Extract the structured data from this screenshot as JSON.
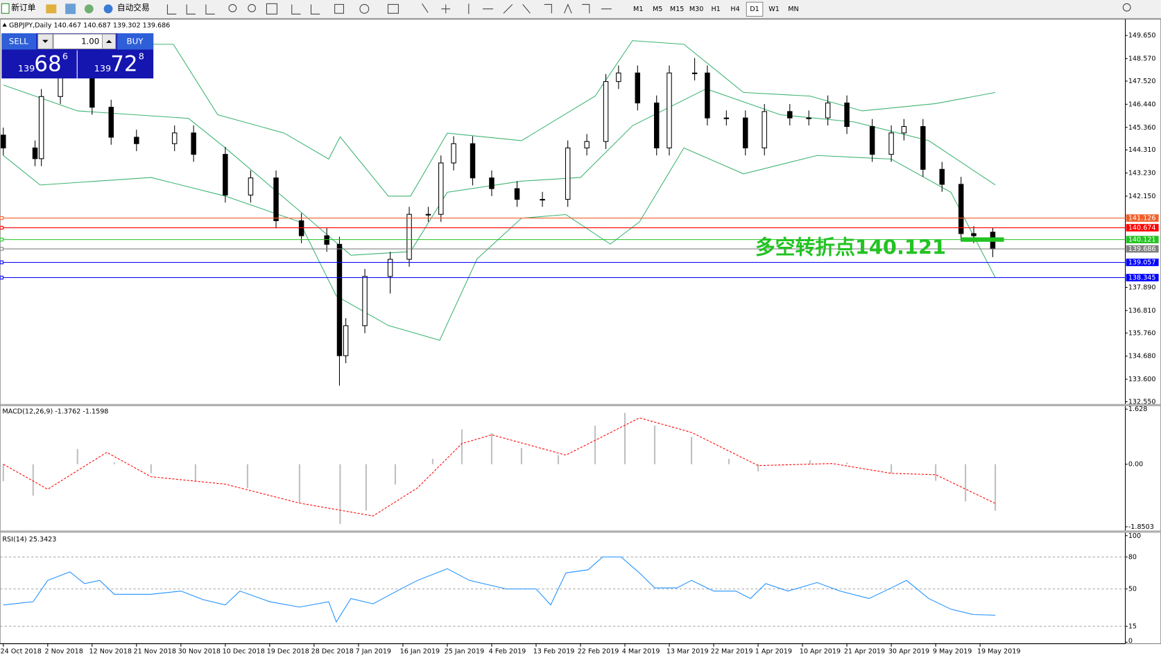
{
  "toolbar": {
    "new_order": "新订单",
    "auto_trading": "自动交易",
    "timeframes": [
      "M1",
      "M5",
      "M15",
      "M30",
      "H1",
      "H4",
      "D1",
      "W1",
      "MN"
    ],
    "active": "D1"
  },
  "trade_panel": {
    "sell": "SELL",
    "buy": "BUY",
    "lots": "1.00",
    "bid": {
      "prefix": "139",
      "big": "68",
      "point": "6"
    },
    "ask": {
      "prefix": "139",
      "big": "72",
      "point": "8"
    }
  },
  "chart_data": [
    {
      "type": "candlestick",
      "title": "GBPJPY,Daily  140.467 140.687 139.302 139.686",
      "x": [
        0,
        5,
        6,
        9,
        14,
        17,
        21,
        27,
        30,
        35,
        39,
        43,
        47,
        51,
        53,
        54,
        57,
        61,
        64,
        67,
        69,
        71,
        74,
        77,
        81,
        85,
        89,
        92,
        95,
        97,
        100,
        103,
        105,
        109,
        111,
        114,
        117,
        120,
        124,
        127,
        130,
        133,
        137,
        140,
        142,
        145,
        148,
        151,
        153,
        156
      ],
      "open": [
        145.0,
        144.4,
        143.9,
        146.8,
        147.9,
        146.3,
        144.9,
        144.6,
        145.1,
        144.1,
        142.2,
        143.0,
        141.0,
        140.3,
        139.9,
        134.7,
        136.1,
        138.4,
        139.2,
        141.3,
        141.3,
        143.7,
        144.6,
        143.0,
        142.5,
        142.0,
        142.0,
        144.4,
        144.7,
        147.5,
        147.9,
        146.5,
        144.4,
        147.9,
        147.9,
        145.8,
        145.8,
        144.4,
        146.1,
        145.8,
        145.8,
        146.5,
        145.4,
        144.1,
        145.1,
        145.4,
        143.4,
        142.7,
        140.4,
        140.467
      ],
      "high": [
        145.35,
        144.75,
        147.15,
        148.25,
        148.25,
        146.65,
        145.25,
        145.45,
        145.45,
        144.45,
        143.35,
        143.35,
        141.35,
        140.65,
        140.25,
        136.45,
        138.75,
        139.55,
        141.65,
        141.65,
        144.05,
        144.95,
        144.95,
        143.35,
        142.85,
        142.35,
        144.75,
        145.05,
        147.85,
        148.25,
        148.25,
        146.85,
        148.25,
        148.6,
        148.25,
        146.15,
        146.15,
        146.45,
        146.45,
        146.15,
        146.85,
        146.85,
        145.75,
        145.45,
        145.75,
        145.75,
        143.75,
        143.05,
        140.75,
        140.687
      ],
      "low": [
        144.05,
        143.55,
        143.55,
        146.45,
        145.95,
        144.55,
        144.25,
        144.25,
        143.75,
        141.85,
        141.85,
        140.65,
        139.95,
        139.55,
        133.3,
        134.35,
        135.75,
        137.6,
        138.85,
        140.95,
        140.95,
        143.35,
        142.65,
        142.15,
        141.65,
        141.65,
        141.65,
        144.05,
        144.35,
        147.15,
        146.15,
        144.05,
        144.05,
        147.55,
        145.45,
        145.45,
        144.05,
        144.05,
        145.45,
        145.45,
        145.45,
        145.05,
        143.75,
        143.75,
        144.75,
        143.05,
        142.35,
        140.05,
        139.95,
        139.302
      ],
      "close": [
        144.4,
        143.9,
        146.8,
        147.9,
        146.3,
        144.9,
        144.6,
        145.1,
        144.1,
        142.2,
        143.0,
        141.0,
        140.3,
        139.9,
        134.7,
        136.1,
        138.4,
        139.2,
        141.3,
        141.3,
        143.7,
        144.6,
        143.0,
        142.5,
        142.0,
        142.0,
        144.4,
        144.7,
        147.5,
        147.9,
        146.5,
        144.4,
        147.9,
        147.9,
        145.8,
        145.8,
        144.4,
        146.1,
        145.8,
        145.8,
        146.5,
        145.4,
        144.1,
        145.1,
        145.4,
        143.4,
        142.7,
        140.4,
        140.3,
        139.686
      ],
      "up_color": "#ffffff",
      "down_color": "#000000",
      "bands": [
        {
          "color": "#3cb371",
          "x": [
            0,
            26.8,
            33.8,
            44.3,
            51.3,
            53.1,
            60.7,
            64.2,
            70,
            81.7,
            93.3,
            99.2,
            107.3,
            116.7,
            127.2,
            135.4,
            147,
            156.4
          ],
          "values": [
            149.24,
            149.24,
            145.95,
            145.09,
            143.88,
            144.92,
            142.15,
            142.15,
            145.09,
            144.74,
            146.82,
            149.41,
            149.24,
            146.99,
            146.82,
            146.13,
            146.47,
            146.99
          ]
        },
        {
          "color": "#3cb371",
          "x": [
            0,
            11.7,
            29.2,
            35,
            46.7,
            54.8,
            64.2,
            70,
            81.7,
            91,
            99.2,
            110.8,
            122.5,
            134.2,
            145.9,
            156.4
          ],
          "values": [
            147.34,
            146.13,
            145.78,
            144.4,
            141.46,
            139.39,
            139.56,
            142.33,
            142.85,
            143.02,
            145.44,
            147.16,
            145.95,
            145.61,
            144.74,
            142.67
          ]
        },
        {
          "color": "#3cb371",
          "x": [
            0,
            5.8,
            23.3,
            35,
            46.7,
            52.5,
            60.7,
            68.8,
            74.7,
            81.7,
            88.7,
            95.7,
            100.3,
            107.3,
            116.7,
            128.3,
            140,
            149.4,
            156.4
          ],
          "values": [
            144.05,
            142.67,
            143.02,
            142.15,
            140.95,
            137.49,
            136.11,
            135.42,
            139.22,
            141.12,
            141.29,
            139.91,
            140.95,
            144.4,
            143.19,
            144.05,
            143.88,
            142.33,
            138.35
          ]
        }
      ],
      "hlines": [
        {
          "value": 141.126,
          "label": "141.126",
          "color": "#f0602a"
        },
        {
          "value": 140.674,
          "label": "140.674",
          "color": "#ff0000"
        },
        {
          "value": 140.121,
          "label": "140.121",
          "color": "#22c322"
        },
        {
          "value": 139.686,
          "label": "139.686",
          "color": "#808080"
        },
        {
          "value": 139.057,
          "label": "139.057",
          "color": "#0000ff"
        },
        {
          "value": 138.345,
          "label": "138.345",
          "color": "#0000ff"
        }
      ],
      "annotation": {
        "text": "多空转折点140.121",
        "value": 140.121,
        "color": "#22c322"
      },
      "xlim": [
        -0.5,
        176.9
      ],
      "xticks": [
        {
          "value": 0,
          "label": "24 Oct 2018"
        },
        {
          "value": 7,
          "label": "2 Nov 2018"
        },
        {
          "value": 14,
          "label": "12 Nov 2018"
        },
        {
          "value": 21,
          "label": "21 Nov 2018"
        },
        {
          "value": 28,
          "label": "30 Nov 2018"
        },
        {
          "value": 35,
          "label": "10 Dec 2018"
        },
        {
          "value": 42,
          "label": "19 Dec 2018"
        },
        {
          "value": 49,
          "label": "28 Dec 2018"
        },
        {
          "value": 56,
          "label": "7 Jan 2019"
        },
        {
          "value": 63,
          "label": "16 Jan 2019"
        },
        {
          "value": 70,
          "label": "25 Jan 2019"
        },
        {
          "value": 77,
          "label": "4 Feb 2019"
        },
        {
          "value": 84,
          "label": "13 Feb 2019"
        },
        {
          "value": 91,
          "label": "22 Feb 2019"
        },
        {
          "value": 98,
          "label": "4 Mar 2019"
        },
        {
          "value": 105,
          "label": "13 Mar 2019"
        },
        {
          "value": 112,
          "label": "22 Mar 2019"
        },
        {
          "value": 119,
          "label": "1 Apr 2019"
        },
        {
          "value": 126,
          "label": "10 Apr 2019"
        },
        {
          "value": 133,
          "label": "21 Apr 2019"
        },
        {
          "value": 140,
          "label": "30 Apr 2019"
        },
        {
          "value": 147,
          "label": "9 May 2019"
        },
        {
          "value": 154,
          "label": "19 May 2019"
        }
      ],
      "ylim": [
        132.48,
        150.34
      ],
      "yticks": [
        {
          "value": 149.65,
          "label": "149.650"
        },
        {
          "value": 148.57,
          "label": "148.570"
        },
        {
          "value": 147.52,
          "label": "147.520"
        },
        {
          "value": 146.44,
          "label": "146.440"
        },
        {
          "value": 145.36,
          "label": "145.360"
        },
        {
          "value": 144.31,
          "label": "144.310"
        },
        {
          "value": 143.23,
          "label": "143.230"
        },
        {
          "value": 142.15,
          "label": "142.150"
        },
        {
          "value": 137.89,
          "label": "137.890"
        },
        {
          "value": 136.81,
          "label": "136.810"
        },
        {
          "value": 135.76,
          "label": "135.760"
        },
        {
          "value": 134.68,
          "label": "134.680"
        },
        {
          "value": 133.6,
          "label": "133.600"
        },
        {
          "value": 132.55,
          "label": "132.550"
        }
      ]
    },
    {
      "type": "macd",
      "title": "MACD(12,26,9) -1.3762 -1.1598",
      "x": [
        0,
        4.7,
        11.7,
        17.5,
        23.3,
        30.3,
        38.5,
        46.7,
        53.1,
        57.2,
        61.8,
        67.7,
        72.3,
        77,
        81.7,
        87.5,
        93.3,
        98,
        102.7,
        108.5,
        114.4,
        119,
        127.2,
        133,
        140,
        147,
        151.7,
        156.4
      ],
      "values": [
        -0.5,
        -0.93,
        0.45,
        0.05,
        -0.27,
        -0.49,
        -0.71,
        -1.15,
        -1.77,
        -1.37,
        -0.6,
        0.16,
        1.03,
        0.92,
        0.48,
        0.27,
        1.14,
        1.52,
        1.14,
        0.81,
        0.16,
        -0.21,
        0.12,
        0.05,
        -0.27,
        -0.49,
        -1.1,
        -1.3762
      ],
      "color": "#c0c0c0",
      "signal": {
        "color": "#ff0000",
        "x": [
          0,
          7,
          16.3,
          23.3,
          35,
          46.7,
          58.3,
          65.3,
          72.3,
          77,
          88.7,
          100.3,
          108.5,
          119,
          130.7,
          140,
          147,
          156.4
        ],
        "values": [
          0,
          -0.74,
          0.35,
          -0.37,
          -0.59,
          -1.15,
          -1.53,
          -0.7,
          0.61,
          0.87,
          0.27,
          1.37,
          0.94,
          -0.04,
          0.02,
          -0.27,
          -0.31,
          -1.1598
        ]
      },
      "ylim": [
        -1.8503,
        1.628
      ],
      "yticks": [
        1.628,
        {
          "value": 0,
          "label": "0.00"
        },
        -1.8503
      ]
    },
    {
      "type": "line",
      "title": "RSI(14) 25.3423",
      "x": [
        0,
        4.7,
        7,
        10.5,
        12.8,
        15.2,
        17.5,
        23.3,
        28,
        31.5,
        35,
        37.3,
        42,
        46.7,
        51.3,
        52.5,
        54.8,
        58.3,
        63,
        65.3,
        70,
        73.5,
        79.3,
        84,
        86.3,
        88.7,
        92.2,
        94.5,
        97.4,
        100.3,
        102.7,
        106.2,
        108.5,
        112,
        115.5,
        117.8,
        120.2,
        123.7,
        128.3,
        131.9,
        136.5,
        140,
        142.4,
        145.9,
        149.4,
        152.9,
        156.4
      ],
      "values": [
        35,
        38,
        58,
        66,
        55,
        58,
        45,
        45,
        48,
        40,
        35,
        48,
        38,
        33,
        38,
        19,
        41,
        36,
        51,
        58,
        69,
        58,
        50,
        50,
        35,
        65,
        68,
        80,
        80,
        65,
        51,
        51,
        58,
        48,
        48,
        41,
        55,
        48,
        56,
        48,
        41,
        51,
        58,
        41,
        31,
        26,
        25.3423
      ],
      "color": "#1e90ff",
      "ylim": [
        0,
        100
      ],
      "yticks": [
        100,
        80,
        50,
        15,
        0
      ]
    }
  ]
}
